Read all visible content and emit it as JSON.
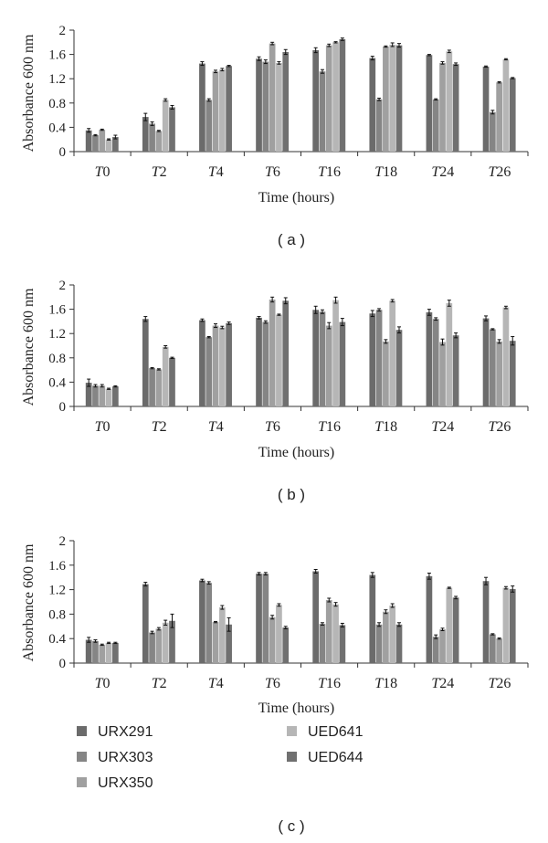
{
  "legend": [
    {
      "name": "URX291",
      "color": "#6b6b6b"
    },
    {
      "name": "URX303",
      "color": "#858585"
    },
    {
      "name": "URX350",
      "color": "#a0a0a0"
    },
    {
      "name": "UED641",
      "color": "#b6b6b6"
    },
    {
      "name": "UED644",
      "color": "#707070"
    }
  ],
  "chart_data": [
    {
      "type": "bar",
      "panel_label": "( a )",
      "ylabel": "Absorbance 600 nm",
      "xlabel": "Time (hours)",
      "ylim": [
        0,
        2
      ],
      "yticks": [
        "0",
        "0.4",
        "0.8",
        "1.2",
        "1.6",
        "2"
      ],
      "categories": [
        {
          "t": "T",
          "n": "0"
        },
        {
          "t": "T",
          "n": "2"
        },
        {
          "t": "T",
          "n": "4"
        },
        {
          "t": "T",
          "n": "6"
        },
        {
          "t": "T",
          "n": "16"
        },
        {
          "t": "T",
          "n": "18"
        },
        {
          "t": "T",
          "n": "24"
        },
        {
          "t": "T",
          "n": "26"
        }
      ],
      "grid": false,
      "series": [
        {
          "name": "URX291",
          "values": [
            0.35,
            0.57,
            1.45,
            1.53,
            1.67,
            1.54,
            1.59,
            1.4
          ],
          "errors": [
            0.03,
            0.06,
            0.03,
            0.03,
            0.04,
            0.03,
            0.01,
            0.01
          ]
        },
        {
          "name": "URX303",
          "values": [
            0.27,
            0.46,
            0.85,
            1.48,
            1.32,
            0.86,
            0.86,
            0.65
          ],
          "errors": [
            0.01,
            0.03,
            0.02,
            0.03,
            0.03,
            0.02,
            0.01,
            0.03
          ]
        },
        {
          "name": "URX350",
          "values": [
            0.36,
            0.34,
            1.32,
            1.78,
            1.75,
            1.73,
            1.46,
            1.14
          ],
          "errors": [
            0.01,
            0.01,
            0.02,
            0.02,
            0.02,
            0.01,
            0.02,
            0.01
          ]
        },
        {
          "name": "UED641",
          "values": [
            0.2,
            0.85,
            1.35,
            1.46,
            1.8,
            1.76,
            1.65,
            1.52
          ],
          "errors": [
            0.01,
            0.02,
            0.02,
            0.02,
            0.01,
            0.03,
            0.02,
            0.01
          ]
        },
        {
          "name": "UED644",
          "values": [
            0.24,
            0.73,
            1.41,
            1.64,
            1.85,
            1.75,
            1.44,
            1.21
          ],
          "errors": [
            0.03,
            0.03,
            0.01,
            0.04,
            0.02,
            0.03,
            0.02,
            0.01
          ]
        }
      ]
    },
    {
      "type": "bar",
      "panel_label": "( b )",
      "ylabel": "Absorbance 600 nm",
      "xlabel": "Time (hours)",
      "ylim": [
        0,
        2
      ],
      "yticks": [
        "0",
        "0.4",
        "0.8",
        "1.2",
        "1.6",
        "2"
      ],
      "categories": [
        {
          "t": "T",
          "n": "0"
        },
        {
          "t": "T",
          "n": "2"
        },
        {
          "t": "T",
          "n": "4"
        },
        {
          "t": "T",
          "n": "6"
        },
        {
          "t": "T",
          "n": "16"
        },
        {
          "t": "T",
          "n": "18"
        },
        {
          "t": "T",
          "n": "24"
        },
        {
          "t": "T",
          "n": "26"
        }
      ],
      "grid": false,
      "series": [
        {
          "name": "URX291",
          "values": [
            0.39,
            1.44,
            1.42,
            1.46,
            1.59,
            1.53,
            1.55,
            1.45
          ],
          "errors": [
            0.06,
            0.04,
            0.02,
            0.02,
            0.06,
            0.05,
            0.05,
            0.04
          ]
        },
        {
          "name": "URX303",
          "values": [
            0.34,
            0.63,
            1.14,
            1.39,
            1.56,
            1.59,
            1.44,
            1.27
          ],
          "errors": [
            0.02,
            0.01,
            0.01,
            0.02,
            0.03,
            0.02,
            0.02,
            0.01
          ]
        },
        {
          "name": "URX350",
          "values": [
            0.34,
            0.61,
            1.33,
            1.76,
            1.33,
            1.07,
            1.06,
            1.07
          ],
          "errors": [
            0.02,
            0.01,
            0.03,
            0.04,
            0.05,
            0.03,
            0.05,
            0.03
          ]
        },
        {
          "name": "UED641",
          "values": [
            0.29,
            0.98,
            1.3,
            1.51,
            1.75,
            1.74,
            1.7,
            1.63
          ],
          "errors": [
            0.01,
            0.02,
            0.02,
            0.01,
            0.05,
            0.02,
            0.05,
            0.02
          ]
        },
        {
          "name": "UED644",
          "values": [
            0.33,
            0.8,
            1.37,
            1.74,
            1.39,
            1.26,
            1.17,
            1.08
          ],
          "errors": [
            0.01,
            0.01,
            0.02,
            0.05,
            0.06,
            0.05,
            0.04,
            0.07
          ]
        }
      ]
    },
    {
      "type": "bar",
      "panel_label": "( c )",
      "ylabel": "Absorbance 600 nm",
      "xlabel": "Time (hours)",
      "ylim": [
        0,
        2
      ],
      "yticks": [
        "0",
        "0.4",
        "0.8",
        "1.2",
        "1.6",
        "2"
      ],
      "categories": [
        {
          "t": "T",
          "n": "0"
        },
        {
          "t": "T",
          "n": "2"
        },
        {
          "t": "T",
          "n": "4"
        },
        {
          "t": "T",
          "n": "6"
        },
        {
          "t": "T",
          "n": "16"
        },
        {
          "t": "T",
          "n": "18"
        },
        {
          "t": "T",
          "n": "24"
        },
        {
          "t": "T",
          "n": "26"
        }
      ],
      "grid": false,
      "series": [
        {
          "name": "URX291",
          "values": [
            0.38,
            1.29,
            1.35,
            1.46,
            1.5,
            1.44,
            1.42,
            1.34
          ],
          "errors": [
            0.04,
            0.03,
            0.02,
            0.02,
            0.03,
            0.04,
            0.05,
            0.06
          ]
        },
        {
          "name": "URX303",
          "values": [
            0.36,
            0.5,
            1.31,
            1.46,
            0.64,
            0.63,
            0.43,
            0.47
          ],
          "errors": [
            0.02,
            0.02,
            0.02,
            0.02,
            0.02,
            0.03,
            0.03,
            0.01
          ]
        },
        {
          "name": "URX350",
          "values": [
            0.3,
            0.56,
            0.67,
            0.75,
            1.03,
            0.84,
            0.55,
            0.4
          ],
          "errors": [
            0.01,
            0.02,
            0.01,
            0.03,
            0.03,
            0.03,
            0.02,
            0.01
          ]
        },
        {
          "name": "UED641",
          "values": [
            0.33,
            0.66,
            0.91,
            0.95,
            0.96,
            0.94,
            1.23,
            1.23
          ],
          "errors": [
            0.01,
            0.04,
            0.03,
            0.02,
            0.03,
            0.03,
            0.01,
            0.02
          ]
        },
        {
          "name": "UED644",
          "values": [
            0.33,
            0.69,
            0.63,
            0.58,
            0.62,
            0.63,
            1.07,
            1.21
          ],
          "errors": [
            0.01,
            0.11,
            0.11,
            0.02,
            0.03,
            0.03,
            0.02,
            0.05
          ]
        }
      ]
    }
  ]
}
